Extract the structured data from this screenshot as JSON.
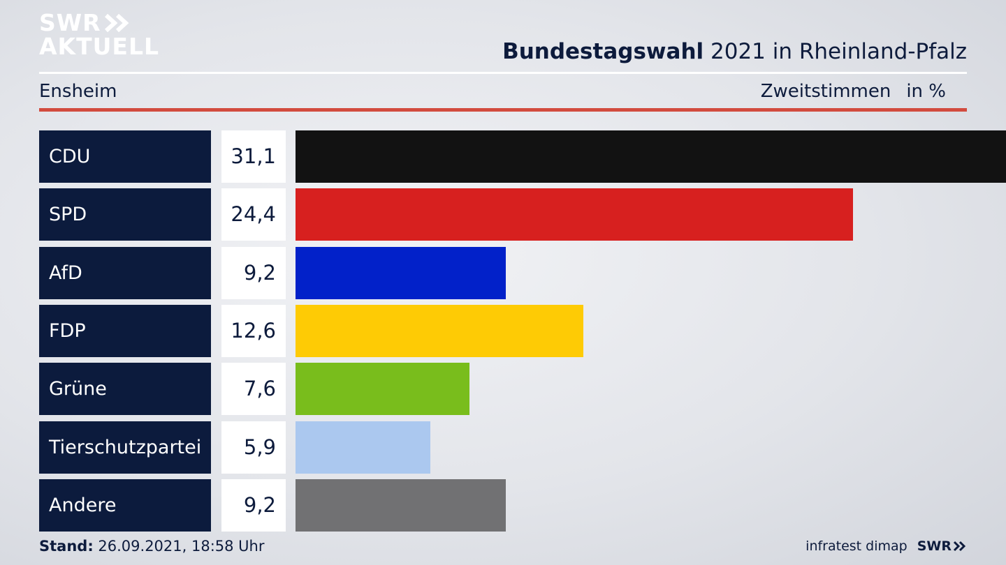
{
  "logo": {
    "line1": "SWR",
    "line2": "AKTUELL"
  },
  "header": {
    "title_bold": "Bundestagswahl",
    "title_rest": " 2021 in Rheinland-Pfalz",
    "region": "Ensheim",
    "measure": "Zweitstimmen",
    "unit": "in %"
  },
  "chart_data": {
    "type": "bar",
    "orientation": "horizontal",
    "categories": [
      "CDU",
      "SPD",
      "AfD",
      "FDP",
      "Grüne",
      "Tierschutzpartei",
      "Andere"
    ],
    "values": [
      31.1,
      24.4,
      9.2,
      12.6,
      7.6,
      5.9,
      9.2
    ],
    "value_labels": [
      "31,1",
      "24,4",
      "9,2",
      "12,6",
      "7,6",
      "5,9",
      "9,2"
    ],
    "colors": [
      "#121212",
      "#d7201f",
      "#0221c9",
      "#fecb05",
      "#79bd1c",
      "#abc8ef",
      "#717173"
    ],
    "xlim": [
      0,
      31.1
    ]
  },
  "footer": {
    "stand_label": "Stand:",
    "stand_value": " 26.09.2021, 18:58 Uhr",
    "source": "infratest dimap",
    "brand": "SWR"
  }
}
